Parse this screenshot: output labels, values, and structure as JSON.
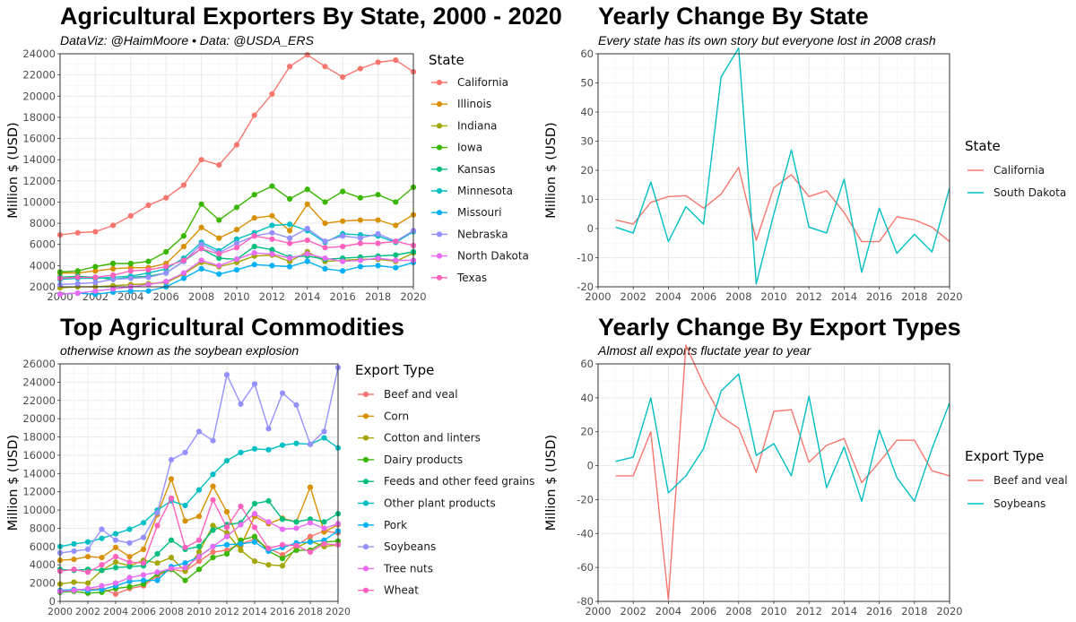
{
  "colors": {
    "10": [
      "#F8766D",
      "#D89000",
      "#A3A500",
      "#39B600",
      "#00BF7D",
      "#00BFC4",
      "#00B0F6",
      "#9590FF",
      "#E76BF3",
      "#FF62BC"
    ],
    "2": [
      "#F8766D",
      "#00BFC4"
    ],
    "panel_border": "#333333",
    "grid": "#ebebeb",
    "axis_text": "#4d4d4d"
  },
  "panels": [
    {
      "id": "p1",
      "title": "Agricultural Exporters By State, 2000 - 2020",
      "subtitle": "DataViz: @HaimMoore • Data: @USDA_ERS"
    },
    {
      "id": "p2",
      "title": "Yearly Change By State",
      "subtitle": "Every state has its own story but everyone lost in 2008 crash"
    },
    {
      "id": "p3",
      "title": "Top Agricultural Commodities",
      "subtitle": "otherwise known as the soybean explosion"
    },
    {
      "id": "p4",
      "title": "Yearly Change By Export Types",
      "subtitle": "Almost all exports fluctate year to year"
    }
  ],
  "chart_data": [
    {
      "type": "line",
      "markers": true,
      "title": "Agricultural Exporters By State, 2000 - 2020",
      "subtitle": "DataViz: @HaimMoore • Data: @USDA_ERS",
      "xlabel": "",
      "ylabel": "Million $ (USD)",
      "xlim": [
        2000,
        2020
      ],
      "ylim": [
        2000,
        24000
      ],
      "xticks": [
        2000,
        2002,
        2004,
        2006,
        2008,
        2010,
        2012,
        2014,
        2016,
        2018,
        2020
      ],
      "yticks": [
        2000,
        4000,
        6000,
        8000,
        10000,
        12000,
        14000,
        16000,
        18000,
        20000,
        22000,
        24000
      ],
      "legend_title": "State",
      "legend_position": "right",
      "grid": true,
      "x": [
        2000,
        2001,
        2002,
        2003,
        2004,
        2005,
        2006,
        2007,
        2008,
        2009,
        2010,
        2011,
        2012,
        2013,
        2014,
        2015,
        2016,
        2017,
        2018,
        2019,
        2020
      ],
      "series": [
        {
          "name": "California",
          "values": [
            6900,
            7100,
            7200,
            7800,
            8700,
            9700,
            10400,
            11600,
            14000,
            13500,
            15400,
            18200,
            20200,
            22800,
            23900,
            22800,
            21800,
            22600,
            23200,
            23400,
            22300
          ]
        },
        {
          "name": "Illinois",
          "values": [
            3300,
            3300,
            3500,
            3700,
            3800,
            3800,
            4200,
            5800,
            7600,
            6600,
            7400,
            8500,
            8700,
            7300,
            9800,
            8000,
            8200,
            8300,
            8300,
            7800,
            8800
          ]
        },
        {
          "name": "Indiana",
          "values": [
            1900,
            2000,
            2000,
            2100,
            2200,
            2300,
            2400,
            3200,
            4300,
            3900,
            4300,
            4900,
            5000,
            4400,
            5300,
            4400,
            4500,
            4600,
            4600,
            4400,
            5200
          ]
        },
        {
          "name": "Iowa",
          "values": [
            3400,
            3500,
            3900,
            4200,
            4200,
            4400,
            5300,
            6800,
            9800,
            8300,
            9500,
            10700,
            11500,
            10300,
            11200,
            10000,
            11000,
            10400,
            10700,
            10000,
            11400
          ]
        },
        {
          "name": "Kansas",
          "values": [
            2900,
            3000,
            2900,
            2700,
            2900,
            3000,
            3300,
            4400,
            5600,
            4700,
            4600,
            5800,
            5500,
            4800,
            4900,
            4600,
            4700,
            4800,
            4900,
            5000,
            5300
          ]
        },
        {
          "name": "Minnesota",
          "values": [
            2700,
            2800,
            2800,
            2900,
            3000,
            3300,
            3700,
            4700,
            6200,
            5400,
            6500,
            7100,
            7800,
            7900,
            7300,
            6200,
            7000,
            6900,
            6800,
            6200,
            7200
          ]
        },
        {
          "name": "Missouri",
          "values": [
            1300,
            1400,
            1300,
            1500,
            1600,
            1600,
            2000,
            2800,
            3700,
            3200,
            3600,
            4100,
            4000,
            3900,
            4400,
            3700,
            3500,
            3900,
            4000,
            3800,
            4300
          ]
        },
        {
          "name": "Nebraska",
          "values": [
            2200,
            2300,
            2400,
            2700,
            2800,
            2900,
            3300,
            4400,
            6000,
            5200,
            6100,
            6800,
            7100,
            6600,
            7500,
            6300,
            6800,
            6600,
            7000,
            6300,
            7300
          ]
        },
        {
          "name": "North Dakota",
          "values": [
            1300,
            1400,
            1600,
            1800,
            2000,
            2200,
            2500,
            3300,
            4500,
            4000,
            4600,
            5200,
            5100,
            4700,
            5100,
            4700,
            4400,
            4500,
            4700,
            4500,
            4500
          ]
        },
        {
          "name": "Texas",
          "values": [
            2800,
            2900,
            2900,
            3100,
            3500,
            3600,
            3900,
            4500,
            5600,
            5100,
            5700,
            6800,
            6500,
            6100,
            6400,
            5700,
            5800,
            6100,
            6100,
            6300,
            5900
          ]
        }
      ]
    },
    {
      "type": "line",
      "markers": false,
      "title": "Yearly Change By State",
      "subtitle": "Every state has its own story but everyone lost in 2008 crash",
      "xlabel": "",
      "ylabel": "Million $ (USD)",
      "xlim": [
        2000,
        2020
      ],
      "ylim": [
        -20,
        60
      ],
      "xticks": [
        2000,
        2002,
        2004,
        2006,
        2008,
        2010,
        2012,
        2014,
        2016,
        2018,
        2020
      ],
      "yticks": [
        -20,
        -10,
        0,
        10,
        20,
        30,
        40,
        50,
        60
      ],
      "legend_title": "State",
      "legend_position": "right",
      "grid": true,
      "x": [
        2001,
        2002,
        2003,
        2004,
        2005,
        2006,
        2007,
        2008,
        2009,
        2010,
        2011,
        2012,
        2013,
        2014,
        2015,
        2016,
        2017,
        2018,
        2019,
        2020
      ],
      "series": [
        {
          "name": "California",
          "values": [
            3,
            1.5,
            9,
            11,
            11.3,
            7,
            11.8,
            21,
            -4,
            14,
            18.5,
            11,
            13,
            5.5,
            -4.5,
            -4.5,
            4,
            3,
            0.5,
            -4.5
          ]
        },
        {
          "name": "South Dakota",
          "values": [
            0.5,
            -1.5,
            16,
            -4.5,
            7.5,
            1.5,
            52,
            62,
            -19,
            5,
            27,
            0.5,
            -1.5,
            17,
            -15,
            7,
            -8.5,
            -2,
            -8,
            14
          ]
        }
      ]
    },
    {
      "type": "line",
      "markers": true,
      "title": "Top Agricultural Commodities",
      "subtitle": "otherwise known as the soybean explosion",
      "xlabel": "",
      "ylabel": "Million $ (USD)",
      "xlim": [
        2000,
        2020
      ],
      "ylim": [
        0,
        26000
      ],
      "xticks": [
        2000,
        2002,
        2004,
        2006,
        2008,
        2010,
        2012,
        2014,
        2016,
        2018,
        2020
      ],
      "yticks": [
        0,
        2000,
        4000,
        6000,
        8000,
        10000,
        12000,
        14000,
        16000,
        18000,
        20000,
        22000,
        24000,
        26000
      ],
      "legend_title": "Export Type",
      "legend_position": "right",
      "grid": true,
      "x": [
        2000,
        2001,
        2002,
        2003,
        2004,
        2005,
        2006,
        2007,
        2008,
        2009,
        2010,
        2011,
        2012,
        2013,
        2014,
        2015,
        2016,
        2017,
        2018,
        2019,
        2020
      ],
      "series": [
        {
          "name": "Beef and veal",
          "values": [
            1200,
            1300,
            1300,
            1400,
            800,
            1400,
            1700,
            2800,
            3500,
            3300,
            4400,
            5400,
            5600,
            6300,
            6800,
            5800,
            5100,
            6100,
            7100,
            7700,
            7500
          ]
        },
        {
          "name": "Corn",
          "values": [
            4500,
            4600,
            4900,
            4800,
            5900,
            4900,
            5700,
            9500,
            13400,
            8800,
            9300,
            12600,
            9800,
            6100,
            9300,
            8500,
            9100,
            8700,
            12500,
            7600,
            8400
          ]
        },
        {
          "name": "Cotton and linters",
          "values": [
            1900,
            2100,
            2000,
            3400,
            4300,
            3900,
            4500,
            4200,
            4800,
            3300,
            5400,
            8300,
            7500,
            5600,
            4400,
            4000,
            3900,
            5900,
            6600,
            6000,
            6200
          ]
        },
        {
          "name": "Dairy products",
          "values": [
            1000,
            1100,
            900,
            1000,
            1400,
            1600,
            1900,
            3000,
            3500,
            2300,
            3500,
            4800,
            5200,
            6700,
            7100,
            5500,
            4700,
            5600,
            5600,
            6500,
            6600
          ]
        },
        {
          "name": "Feeds and other feed grains",
          "values": [
            3500,
            3400,
            3500,
            3400,
            3700,
            3800,
            3900,
            5200,
            6700,
            5700,
            6000,
            7800,
            8400,
            8600,
            10700,
            11000,
            9000,
            8700,
            9000,
            8700,
            9600
          ]
        },
        {
          "name": "Other plant products",
          "values": [
            6000,
            6300,
            6500,
            6900,
            7400,
            7900,
            8600,
            10000,
            11000,
            10500,
            12200,
            13900,
            15400,
            16300,
            16700,
            16600,
            17100,
            17300,
            17200,
            17900,
            16800
          ]
        },
        {
          "name": "Pork",
          "values": [
            1200,
            1300,
            1200,
            1300,
            1700,
            2200,
            2300,
            2300,
            3800,
            4200,
            4900,
            6000,
            6200,
            6300,
            6500,
            5500,
            5900,
            6400,
            6500,
            6700,
            7700
          ]
        },
        {
          "name": "Soybeans",
          "values": [
            5300,
            5500,
            5700,
            7900,
            6700,
            6400,
            7000,
            9700,
            15500,
            16300,
            18600,
            17600,
            24800,
            21600,
            23800,
            18900,
            22800,
            21500,
            17200,
            18600,
            25600
          ]
        },
        {
          "name": "Tree nuts",
          "values": [
            1100,
            1200,
            1400,
            1700,
            2000,
            2600,
            2900,
            3200,
            3600,
            3700,
            4900,
            6000,
            7100,
            8400,
            9600,
            8700,
            7900,
            8000,
            8600,
            8000,
            8500
          ]
        },
        {
          "name": "Wheat",
          "values": [
            3300,
            3500,
            3200,
            4000,
            4900,
            4300,
            4200,
            8300,
            11300,
            5900,
            6700,
            11100,
            8100,
            10400,
            8100,
            5800,
            6200,
            6100,
            5400,
            6300,
            6200
          ]
        }
      ]
    },
    {
      "type": "line",
      "markers": false,
      "title": "Yearly Change By Export Types",
      "subtitle": "Almost all exports fluctate year to year",
      "xlabel": "",
      "ylabel": "Million $ (USD)",
      "xlim": [
        2000,
        2020
      ],
      "ylim": [
        -80,
        60
      ],
      "xticks": [
        2000,
        2002,
        2004,
        2006,
        2008,
        2010,
        2012,
        2014,
        2016,
        2018,
        2020
      ],
      "yticks": [
        -80,
        -60,
        -40,
        -20,
        0,
        20,
        40,
        60
      ],
      "legend_title": "Export Type",
      "legend_position": "right",
      "grid": true,
      "x": [
        2001,
        2002,
        2003,
        2004,
        2005,
        2006,
        2007,
        2008,
        2009,
        2010,
        2011,
        2012,
        2013,
        2014,
        2015,
        2016,
        2017,
        2018,
        2019,
        2020
      ],
      "series": [
        {
          "name": "Beef and veal",
          "values": [
            -6,
            -6,
            20,
            -79,
            71,
            48,
            29,
            22,
            -4,
            32,
            33,
            2,
            12,
            16,
            -10,
            2,
            15,
            15,
            -3,
            -6
          ]
        },
        {
          "name": "Soybeans",
          "values": [
            2.5,
            5,
            40,
            -16,
            -6,
            10,
            44,
            54,
            6,
            13,
            -6,
            41,
            -13,
            11,
            -21,
            21,
            -7,
            -21,
            10,
            37
          ]
        }
      ]
    }
  ]
}
